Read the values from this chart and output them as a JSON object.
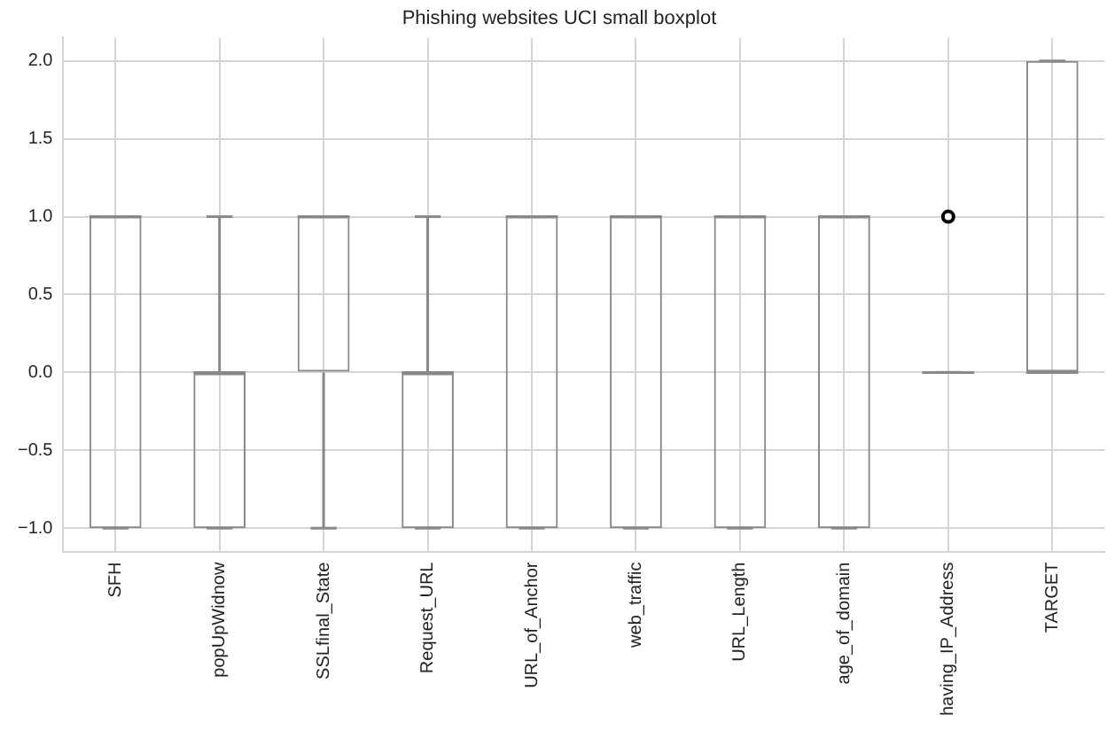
{
  "chart_data": {
    "type": "box",
    "title": "Phishing websites UCI small boxplot",
    "categories": [
      "SFH",
      "popUpWidnow",
      "SSLfinal_State",
      "Request_URL",
      "URL_of_Anchor",
      "web_traffic",
      "URL_Length",
      "age_of_domain",
      "having_IP_Address",
      "TARGET"
    ],
    "boxes": [
      {
        "low": -1,
        "q1": -1,
        "median": 1,
        "q3": 1,
        "high": 1
      },
      {
        "low": -1,
        "q1": -1,
        "median": 0,
        "q3": 0,
        "high": 1
      },
      {
        "low": -1,
        "q1": 0,
        "median": 1,
        "q3": 1,
        "high": 1
      },
      {
        "low": -1,
        "q1": -1,
        "median": 0,
        "q3": 0,
        "high": 1
      },
      {
        "low": -1,
        "q1": -1,
        "median": 1,
        "q3": 1,
        "high": 1
      },
      {
        "low": -1,
        "q1": -1,
        "median": 1,
        "q3": 1,
        "high": 1
      },
      {
        "low": -1,
        "q1": -1,
        "median": 1,
        "q3": 1,
        "high": 1
      },
      {
        "low": -1,
        "q1": -1,
        "median": 1,
        "q3": 1,
        "high": 1
      },
      {
        "low": 0,
        "q1": 0,
        "median": 0,
        "q3": 0,
        "high": 0,
        "outliers": [
          1
        ]
      },
      {
        "low": 0,
        "q1": 0,
        "median": 0,
        "q3": 2,
        "high": 2
      }
    ],
    "color": "#888888",
    "ylim": [
      -1.15,
      2.15
    ],
    "yticks": [
      {
        "value": -1,
        "label": "−1.0"
      },
      {
        "value": -0.5,
        "label": "−0.5"
      },
      {
        "value": 0,
        "label": "0.0"
      },
      {
        "value": 0.5,
        "label": "0.5"
      },
      {
        "value": 1,
        "label": "1.0"
      },
      {
        "value": 1.5,
        "label": "1.5"
      },
      {
        "value": 2,
        "label": "2.0"
      }
    ],
    "grid": true,
    "legend": false
  }
}
